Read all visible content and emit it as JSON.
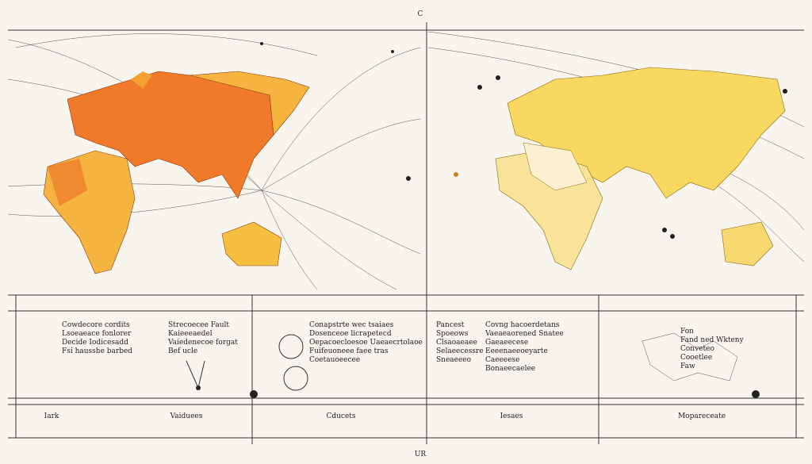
{
  "header": {
    "title": "C"
  },
  "panels": [
    {
      "lines": [
        "Cowdecore cordits",
        "Lsoeaeace fonlorer",
        "Decide Iodicesadd",
        "Fsi hausshe barbed"
      ]
    },
    {
      "lines": [
        "Strecoecee Fault",
        "Kaieeeaedel",
        "Vaiedenecoe forgat",
        "Bef ucle"
      ]
    },
    {
      "lines": [
        "Conapstrte wec tsaiaes",
        "Dosenceoe licrapetecd",
        "Oepacoecloesoe Uaeaecrtolaoe",
        "Fuifeuoneee faee tras",
        "Coetauoeecee"
      ]
    },
    {
      "lines": [
        "Pancest",
        "Spoeows",
        "Clsaoaeaee",
        "Selaeecessre",
        "Sneaeeeo"
      ]
    },
    {
      "lines": [
        "Covng hacoerdetans",
        "Vaeaeaorened Snatee",
        "Gaeaeecese",
        "Eeeenaeeoeyarte",
        "Caeeeese",
        "Bonaeecaelee"
      ]
    },
    {
      "lines": [
        "Fon",
        "Fand ned Wkteny",
        "Conveteo",
        "Cooetlee",
        "Faw"
      ]
    }
  ],
  "footer": {
    "labels": [
      "Iark",
      "Vaiduees",
      "Cducets",
      "Iesaes",
      "Mopareceate"
    ]
  },
  "mark": "UR"
}
